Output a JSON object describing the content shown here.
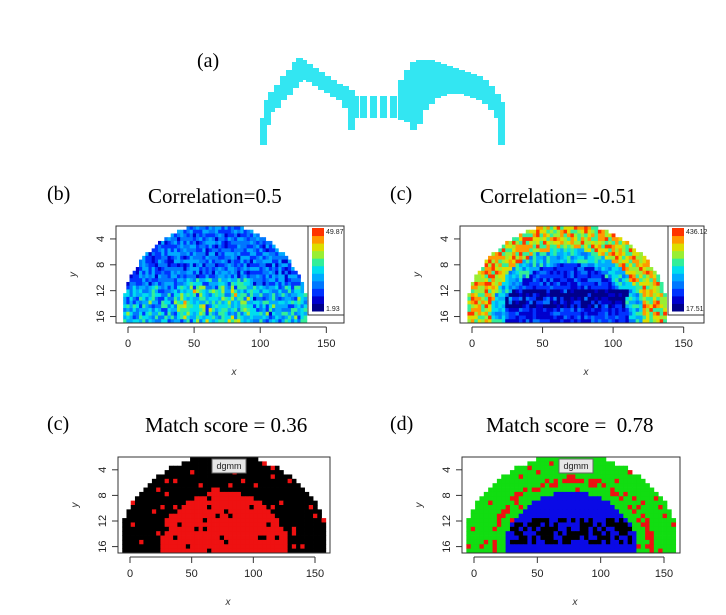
{
  "panel_a": {
    "letter": "(a)",
    "color": "#33e6f2"
  },
  "panel_b": {
    "letter": "(b)",
    "title": "Correlation=0.5",
    "colorbar": {
      "max": "49.87",
      "min": "1.93"
    },
    "x_ticks": [
      "0",
      "50",
      "100",
      "150"
    ],
    "y_ticks": [
      "4",
      "8",
      "12",
      "16"
    ],
    "xlabel": "x",
    "ylabel": "y"
  },
  "panel_c1": {
    "letter": "(c)",
    "title": "Correlation= -0.51",
    "colorbar": {
      "max": "436.12",
      "min": "17.51"
    },
    "x_ticks": [
      "0",
      "50",
      "100",
      "150"
    ],
    "y_ticks": [
      "4",
      "8",
      "12",
      "16"
    ],
    "xlabel": "x",
    "ylabel": "y"
  },
  "panel_c2": {
    "letter": "(c)",
    "title": "Match score = 0.36",
    "legend": "dgmm",
    "x_ticks": [
      "0",
      "50",
      "100",
      "150"
    ],
    "y_ticks": [
      "4",
      "8",
      "12",
      "16"
    ],
    "xlabel": "x",
    "ylabel": "y",
    "colors": [
      "#000000",
      "#ee1111"
    ]
  },
  "panel_d": {
    "letter": "(d)",
    "title": "Match score =  0.78",
    "legend": "dgmm",
    "x_ticks": [
      "0",
      "50",
      "100",
      "150"
    ],
    "y_ticks": [
      "4",
      "8",
      "12",
      "16"
    ],
    "xlabel": "x",
    "ylabel": "y",
    "colors": [
      "#11dd11",
      "#0a0ae6",
      "#000000",
      "#ee1111"
    ]
  }
}
